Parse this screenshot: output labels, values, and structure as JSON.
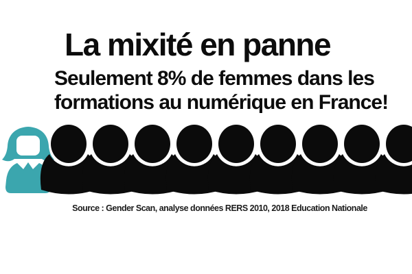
{
  "header": {
    "title": "La mixité en panne"
  },
  "subtitle": {
    "line1": "Seulement 8% de femmes dans les",
    "line2": "formations au numérique en France!"
  },
  "footer": {
    "source": "Source : Gender Scan, analyse données RERS 2010, 2018 Education Nationale"
  },
  "colors": {
    "background": "#FFFFFF",
    "text": "#0C0C0C",
    "female": "#3BA6AE",
    "male": "#0B0B0B"
  },
  "chart_data": {
    "type": "pictogram",
    "title": "La mixité en panne",
    "subtitle": "Seulement 8% de femmes dans les formations au numérique en France!",
    "value_percent": 8,
    "unit": "% de femmes dans les formations au numérique en France",
    "icons": {
      "female_count": 1,
      "male_count": 9,
      "female_color": "#3BA6AE",
      "male_color": "#0B0B0B"
    },
    "source": "Source : Gender Scan, analyse données RERS 2010, 2018 Education Nationale"
  }
}
